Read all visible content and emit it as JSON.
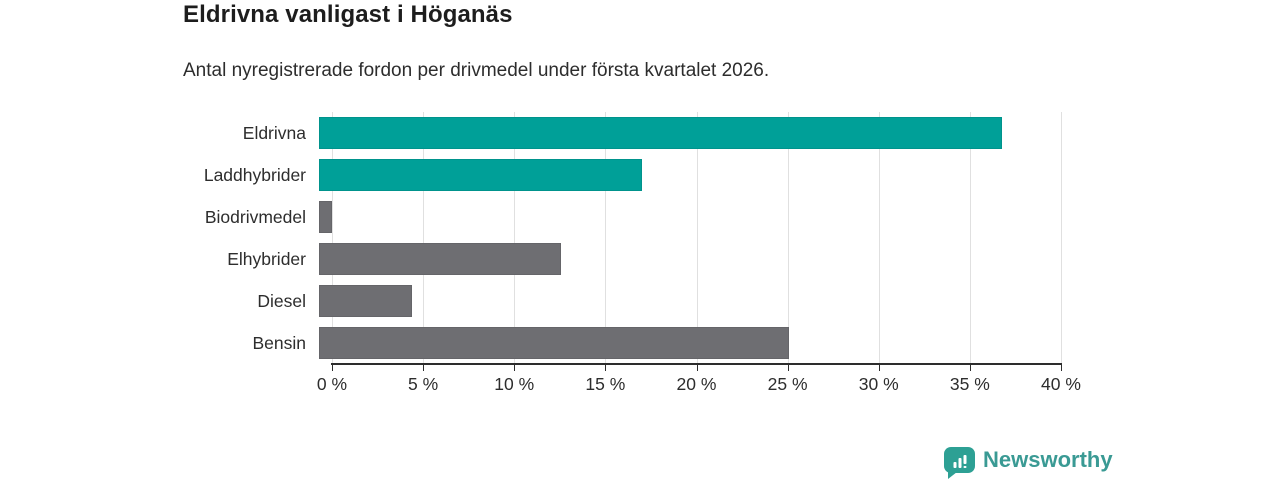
{
  "header": {
    "title": "Eldrivna vanligast i Höganäs",
    "subtitle": "Antal nyregistrerade fordon per drivmedel under första kvartalet 2026."
  },
  "chart_data": {
    "type": "bar",
    "orientation": "horizontal",
    "title": "Eldrivna vanligast i Höganäs",
    "subtitle": "Antal nyregistrerade fordon per drivmedel under första kvartalet 2026.",
    "categories": [
      "Eldrivna",
      "Laddhybrider",
      "Biodrivmedel",
      "Elhybrider",
      "Diesel",
      "Bensin"
    ],
    "values": [
      37.5,
      17.7,
      0.7,
      13.3,
      5.1,
      25.8
    ],
    "unit": "%",
    "xlabel": "",
    "ylabel": "",
    "xlim": [
      0,
      40
    ],
    "x_ticks": [
      0,
      5,
      10,
      15,
      20,
      25,
      30,
      35,
      40
    ],
    "x_tick_labels": [
      "0 %",
      "5 %",
      "10 %",
      "15 %",
      "20 %",
      "25 %",
      "30 %",
      "35 %",
      "40 %"
    ],
    "grid": true,
    "legend": "none",
    "bar_colors": [
      "#00a098",
      "#00a098",
      "#6e6e72",
      "#6e6e72",
      "#6e6e72",
      "#6e6e72"
    ],
    "highlight_color": "#00a098",
    "default_color": "#6e6e72"
  },
  "footer": {
    "logo_text": "Newsworthy",
    "logo_color": "#3a9a94"
  }
}
